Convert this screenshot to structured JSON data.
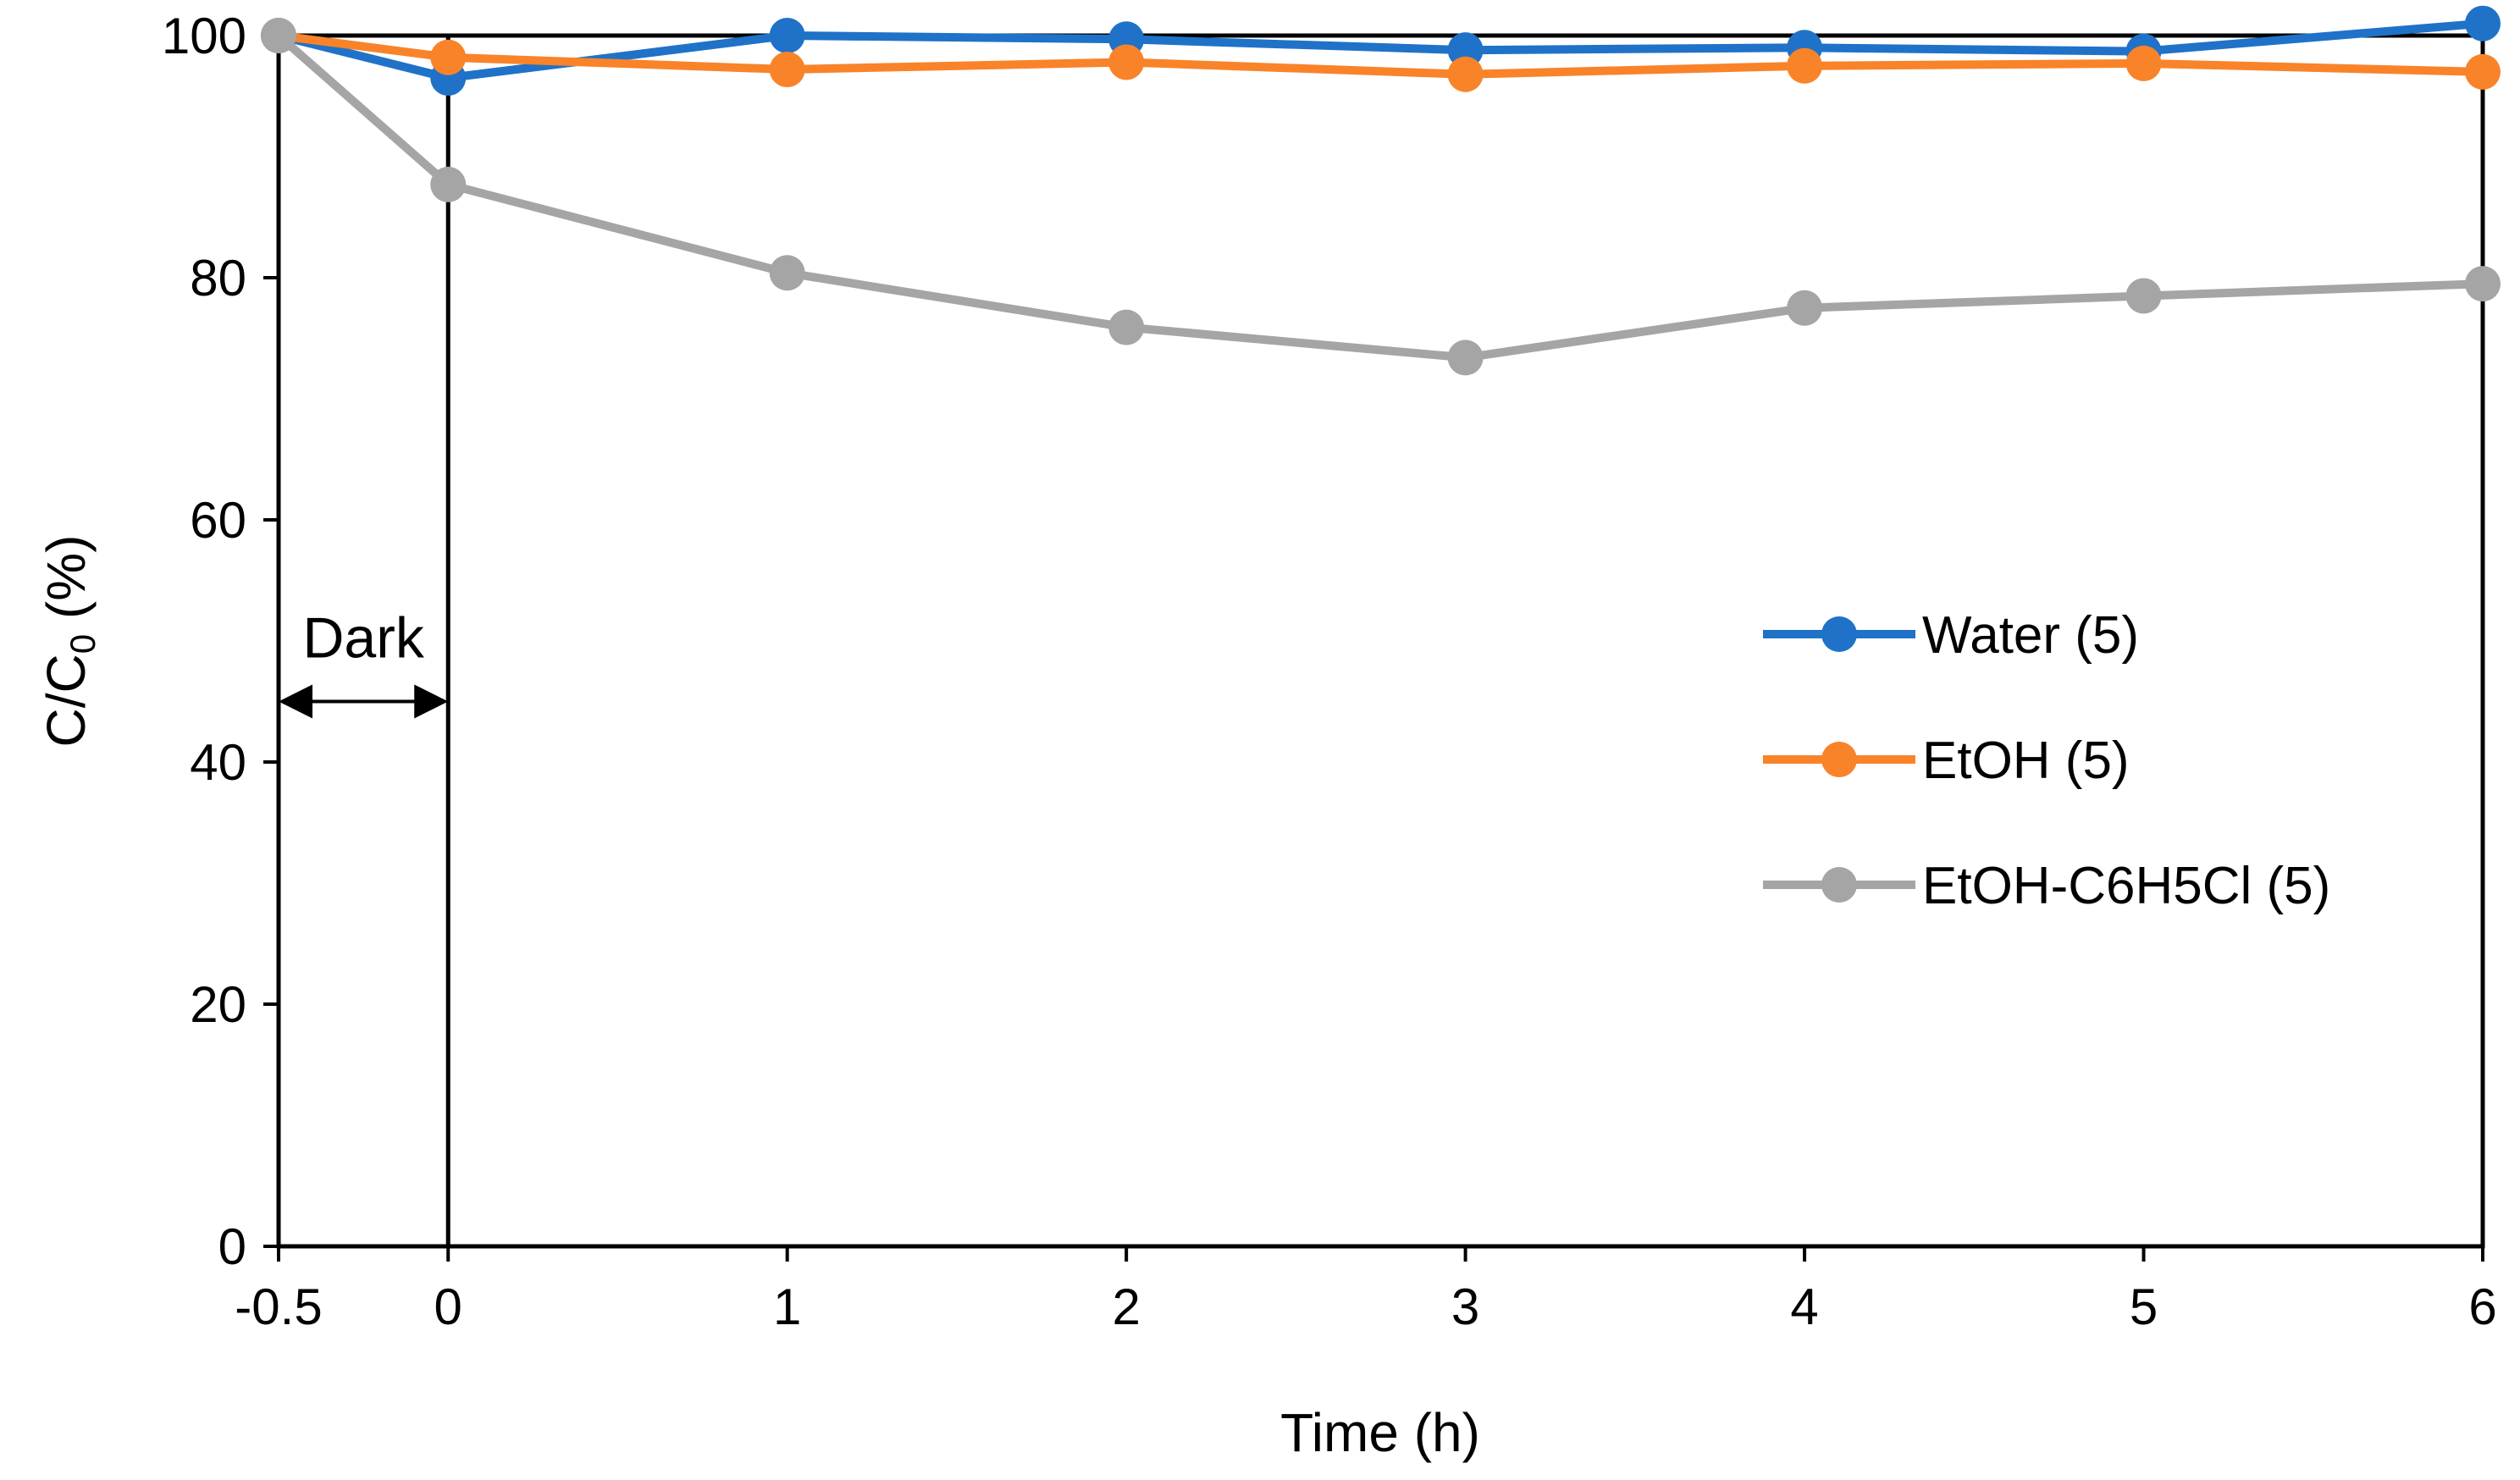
{
  "chart_data": {
    "type": "line",
    "title": "",
    "xlabel": "Time (h)",
    "ylabel": "C/C",
    "ylabel_subscript": "0",
    "ylabel_suffix": " (%)",
    "xlim": [
      -0.5,
      6
    ],
    "ylim": [
      0,
      100
    ],
    "x_ticks": [
      -0.5,
      0,
      1,
      2,
      3,
      4,
      5,
      6
    ],
    "x_tick_labels": [
      "-0.5",
      "0",
      "1",
      "2",
      "3",
      "4",
      "5",
      "6"
    ],
    "y_ticks": [
      0,
      20,
      40,
      60,
      80,
      100
    ],
    "y_tick_labels": [
      "0",
      "20",
      "40",
      "60",
      "80",
      "100"
    ],
    "grid": false,
    "legend_position": "right-middle",
    "x": [
      -0.5,
      0,
      1,
      2,
      3,
      4,
      5,
      6
    ],
    "series": [
      {
        "name": "Water (5)",
        "color": "#1f72c8",
        "values": [
          100,
          96.5,
          100,
          99.7,
          98.8,
          99,
          98.7,
          101
        ]
      },
      {
        "name": "EtOH (5)",
        "color": "#f98329",
        "values": [
          100,
          98.2,
          97.2,
          97.8,
          96.8,
          97.5,
          97.7,
          97
        ]
      },
      {
        "name": "EtOH-C6H5Cl (5)",
        "color": "#a5a5a5",
        "values": [
          100,
          87.7,
          80.4,
          75.9,
          73.4,
          77.5,
          78.5,
          79.5
        ]
      }
    ],
    "annotations": [
      {
        "text": "Dark",
        "type": "double-arrow",
        "x_from": -0.5,
        "x_to": 0,
        "y": 45
      }
    ],
    "vertical_lines": [
      {
        "x": 0
      }
    ]
  }
}
